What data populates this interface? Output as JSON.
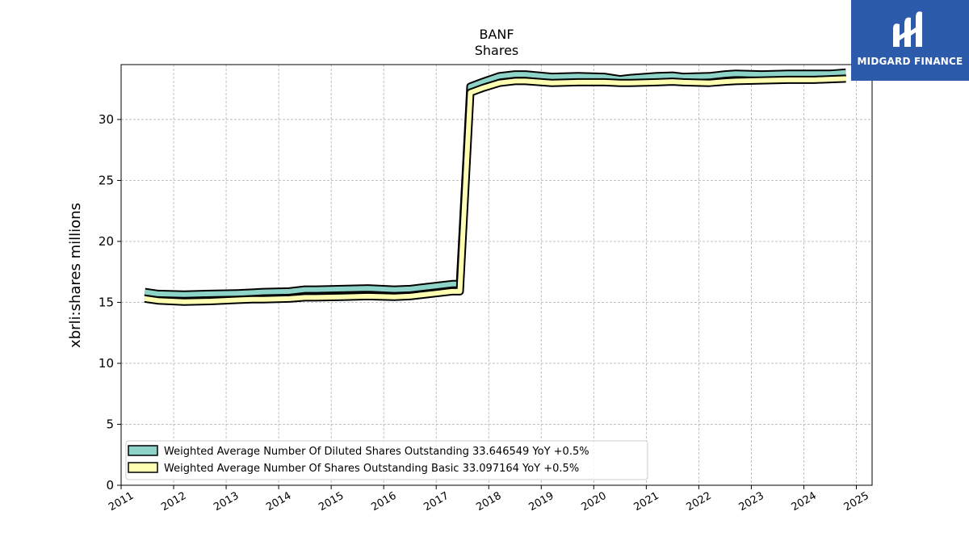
{
  "brand": {
    "name": "MIDGARD FINANCE",
    "color": "#2d5bab",
    "icon": "midgard-logo-icon"
  },
  "chart_data": {
    "type": "line",
    "title": "BANF",
    "subtitle": "Shares",
    "ylabel": "xbrli:shares millions",
    "xlabel": "",
    "xlim": [
      2011.0,
      2025.3
    ],
    "ylim": [
      0,
      34.5
    ],
    "x_ticks": [
      "2011",
      "2012",
      "2013",
      "2014",
      "2015",
      "2016",
      "2017",
      "2018",
      "2019",
      "2020",
      "2021",
      "2022",
      "2023",
      "2024",
      "2025"
    ],
    "y_ticks": [
      0,
      5,
      10,
      15,
      20,
      25,
      30
    ],
    "grid": true,
    "legend_position": "lower-left",
    "series": [
      {
        "name": "Weighted Average Number Of Diluted Shares Outstanding",
        "legend": "Weighted Average Number Of Diluted Shares Outstanding  33.646549 YoY +0.5%",
        "color": "#8dd3c7",
        "x": [
          2011.45,
          2011.7,
          2012.2,
          2012.7,
          2013.2,
          2013.5,
          2013.7,
          2014.2,
          2014.5,
          2014.7,
          2015.2,
          2015.7,
          2016.2,
          2016.5,
          2016.7,
          2017.0,
          2017.3,
          2017.45,
          2017.65,
          2017.9,
          2018.2,
          2018.5,
          2018.7,
          2019.2,
          2019.7,
          2020.2,
          2020.5,
          2020.7,
          2021.2,
          2021.5,
          2021.7,
          2022.2,
          2022.5,
          2022.7,
          2023.2,
          2023.7,
          2024.2,
          2024.5,
          2024.8
        ],
        "values": [
          15.85,
          15.7,
          15.65,
          15.7,
          15.75,
          15.8,
          15.85,
          15.9,
          16.05,
          16.05,
          16.1,
          16.15,
          16.05,
          16.1,
          16.2,
          16.35,
          16.5,
          16.5,
          32.7,
          33.1,
          33.55,
          33.7,
          33.7,
          33.5,
          33.55,
          33.5,
          33.3,
          33.4,
          33.55,
          33.6,
          33.5,
          33.55,
          33.7,
          33.75,
          33.7,
          33.75,
          33.75,
          33.75,
          33.85
        ]
      },
      {
        "name": "Weighted Average Number Of Shares Outstanding Basic",
        "legend": "Weighted Average Number Of Shares Outstanding Basic  33.097164 YoY +0.5%",
        "color": "#ffffb3",
        "x": [
          2011.45,
          2011.7,
          2012.2,
          2012.7,
          2013.2,
          2013.5,
          2013.7,
          2014.2,
          2014.5,
          2014.7,
          2015.2,
          2015.7,
          2016.2,
          2016.5,
          2016.7,
          2017.0,
          2017.3,
          2017.45,
          2017.65,
          2017.9,
          2018.2,
          2018.5,
          2018.7,
          2019.2,
          2019.7,
          2020.2,
          2020.5,
          2020.7,
          2021.2,
          2021.5,
          2021.7,
          2022.2,
          2022.5,
          2022.7,
          2023.2,
          2023.7,
          2024.2,
          2024.5,
          2024.8
        ],
        "values": [
          15.3,
          15.15,
          15.05,
          15.1,
          15.2,
          15.25,
          15.25,
          15.3,
          15.4,
          15.4,
          15.45,
          15.5,
          15.45,
          15.5,
          15.6,
          15.75,
          15.9,
          15.9,
          32.2,
          32.6,
          33.0,
          33.15,
          33.15,
          33.0,
          33.05,
          33.05,
          33.0,
          33.0,
          33.05,
          33.1,
          33.05,
          33.0,
          33.1,
          33.15,
          33.2,
          33.25,
          33.25,
          33.3,
          33.35
        ]
      }
    ]
  }
}
